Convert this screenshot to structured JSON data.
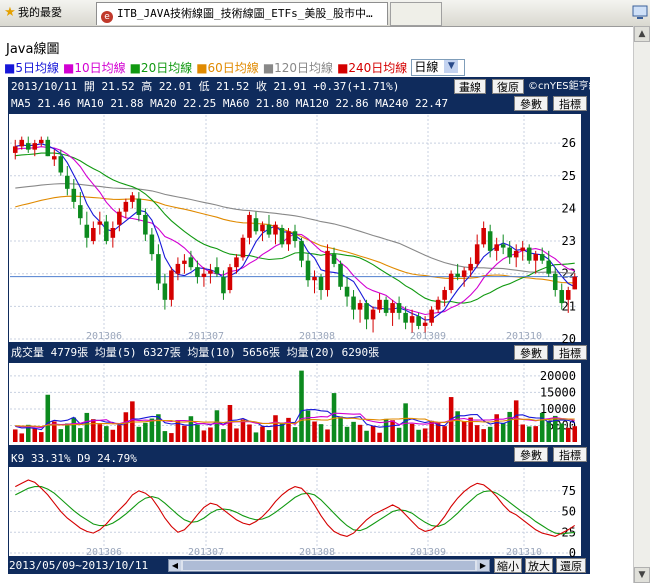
{
  "tabs": {
    "favorites": "我的最愛",
    "active": "ITB_JAVA技術線圖_技術線圖_ETFs_美股_股市中…",
    "active_icon": "cnyes-favicon"
  },
  "page": {
    "title": "Java線圖",
    "ma_legend": [
      {
        "label": "■5日均線",
        "color": "#1818d8"
      },
      {
        "label": "■10日均線",
        "color": "#d200d2"
      },
      {
        "label": "■20日均線",
        "color": "#119911"
      },
      {
        "label": "■60日均線",
        "color": "#e08a00"
      },
      {
        "label": "■120日均線",
        "color": "#888888"
      },
      {
        "label": "■240日均線",
        "color": "#d40000"
      }
    ],
    "period_select": "日線"
  },
  "header": {
    "quote_line": "2013/10/11 開 21.52 高 22.01 低 21.52 收 21.91 +0.37(+1.71%)",
    "ma_line": "MA5 21.46  MA10 21.88  MA20 22.25  MA60 21.80  MA120 22.86  MA240 22.47",
    "draw_button": "畫線",
    "restore_button": "復原",
    "copyright": "©cnYES鉅亨網",
    "params_button": "參數",
    "indicator_button": "指標"
  },
  "volume_header": {
    "text": "成交量 4779張  均量(5) 6327張  均量(10) 5656張  均量(20) 6290張",
    "params_button": "參數",
    "indicator_button": "指標"
  },
  "kd_header": {
    "text": "K9 33.31%  D9 24.79%",
    "params_button": "參數",
    "indicator_button": "指標"
  },
  "footer": {
    "range": "2013/05/09~2013/10/11",
    "zoom_out_button": "縮小",
    "zoom_in_button": "放大",
    "reset_button": "還原"
  },
  "colors": {
    "panel_bg": "#ffffff",
    "frame": "#0f2b5c",
    "up": "#d40000",
    "down": "#0c8a1e",
    "grid": "#c8d0e0"
  },
  "chart_data": [
    {
      "type": "candlestick",
      "title": "",
      "x_tick_labels": [
        "201306",
        "201307",
        "201308",
        "201309",
        "201310"
      ],
      "yticks": [
        20,
        21,
        22,
        23,
        24,
        25,
        26
      ],
      "ylim": [
        20,
        26.8
      ],
      "ohlc": [
        [
          25.7,
          26.1,
          25.5,
          25.9
        ],
        [
          25.9,
          26.2,
          25.8,
          26.1
        ],
        [
          26.0,
          26.2,
          25.7,
          25.8
        ],
        [
          25.8,
          26.1,
          25.6,
          26.0
        ],
        [
          26.0,
          26.2,
          25.9,
          26.1
        ],
        [
          26.1,
          26.2,
          25.6,
          25.6
        ],
        [
          25.5,
          25.8,
          25.3,
          25.6
        ],
        [
          25.6,
          25.8,
          25.0,
          25.1
        ],
        [
          25.0,
          25.3,
          24.4,
          24.6
        ],
        [
          24.6,
          24.9,
          24.0,
          24.2
        ],
        [
          24.1,
          24.5,
          23.5,
          23.7
        ],
        [
          23.5,
          23.9,
          22.8,
          23.1
        ],
        [
          23.0,
          23.6,
          22.9,
          23.4
        ],
        [
          23.5,
          23.9,
          23.2,
          23.6
        ],
        [
          23.6,
          23.8,
          22.9,
          23.0
        ],
        [
          23.1,
          23.6,
          22.8,
          23.4
        ],
        [
          23.5,
          24.0,
          23.3,
          23.9
        ],
        [
          23.9,
          24.3,
          23.7,
          24.2
        ],
        [
          24.2,
          24.5,
          24.0,
          24.4
        ],
        [
          24.3,
          24.5,
          23.6,
          23.8
        ],
        [
          23.8,
          24.0,
          23.0,
          23.2
        ],
        [
          23.2,
          23.4,
          22.4,
          22.6
        ],
        [
          22.6,
          22.9,
          21.5,
          21.7
        ],
        [
          21.7,
          22.0,
          20.9,
          21.2
        ],
        [
          21.2,
          22.2,
          21.0,
          22.1
        ],
        [
          22.0,
          22.5,
          21.8,
          22.3
        ],
        [
          22.3,
          22.6,
          22.0,
          22.4
        ],
        [
          22.5,
          22.7,
          22.1,
          22.2
        ],
        [
          22.2,
          22.4,
          21.7,
          21.9
        ],
        [
          21.9,
          22.2,
          21.6,
          22.0
        ],
        [
          22.0,
          22.3,
          21.7,
          22.1
        ],
        [
          22.2,
          22.5,
          21.9,
          22.0
        ],
        [
          21.9,
          22.1,
          21.2,
          21.4
        ],
        [
          21.5,
          22.3,
          21.4,
          22.2
        ],
        [
          22.2,
          22.6,
          22.0,
          22.5
        ],
        [
          22.5,
          23.2,
          22.4,
          23.1
        ],
        [
          23.1,
          23.9,
          22.9,
          23.8
        ],
        [
          23.7,
          23.9,
          23.2,
          23.3
        ],
        [
          23.3,
          23.6,
          23.0,
          23.5
        ],
        [
          23.5,
          23.8,
          23.1,
          23.2
        ],
        [
          23.2,
          23.6,
          22.9,
          23.5
        ],
        [
          23.4,
          23.5,
          22.8,
          22.9
        ],
        [
          22.9,
          23.4,
          22.7,
          23.3
        ],
        [
          23.3,
          23.5,
          22.8,
          23.0
        ],
        [
          23.0,
          23.1,
          22.2,
          22.4
        ],
        [
          22.4,
          22.6,
          21.6,
          21.8
        ],
        [
          21.8,
          22.1,
          21.4,
          21.9
        ],
        [
          21.9,
          22.0,
          21.2,
          21.5
        ],
        [
          21.5,
          22.9,
          21.3,
          22.7
        ],
        [
          22.6,
          22.8,
          22.2,
          22.3
        ],
        [
          22.3,
          22.4,
          21.5,
          21.6
        ],
        [
          21.6,
          21.9,
          21.0,
          21.3
        ],
        [
          21.3,
          21.5,
          20.6,
          20.9
        ],
        [
          20.9,
          21.2,
          20.5,
          21.1
        ],
        [
          21.1,
          21.2,
          20.3,
          20.6
        ],
        [
          20.6,
          21.0,
          20.2,
          20.9
        ],
        [
          20.9,
          21.4,
          20.8,
          21.2
        ],
        [
          21.2,
          21.3,
          20.7,
          20.8
        ],
        [
          20.8,
          21.2,
          20.4,
          21.1
        ],
        [
          21.1,
          21.3,
          20.6,
          20.8
        ],
        [
          20.8,
          21.0,
          20.3,
          20.5
        ],
        [
          20.5,
          20.9,
          20.2,
          20.7
        ],
        [
          20.7,
          20.8,
          20.3,
          20.4
        ],
        [
          20.4,
          20.7,
          20.2,
          20.5
        ],
        [
          20.5,
          21.0,
          20.4,
          20.9
        ],
        [
          20.9,
          21.3,
          20.8,
          21.2
        ],
        [
          21.2,
          21.6,
          21.0,
          21.5
        ],
        [
          21.5,
          22.1,
          21.4,
          22.0
        ],
        [
          22.0,
          22.3,
          21.8,
          21.9
        ],
        [
          21.9,
          22.2,
          21.6,
          22.1
        ],
        [
          22.1,
          22.5,
          21.9,
          22.3
        ],
        [
          22.3,
          23.2,
          22.2,
          22.9
        ],
        [
          22.9,
          23.6,
          22.8,
          23.4
        ],
        [
          23.3,
          23.5,
          22.5,
          22.7
        ],
        [
          22.7,
          23.1,
          22.4,
          22.9
        ],
        [
          22.9,
          23.2,
          22.6,
          22.8
        ],
        [
          22.8,
          23.0,
          22.3,
          22.5
        ],
        [
          22.5,
          22.9,
          22.2,
          22.7
        ],
        [
          22.7,
          23.0,
          22.4,
          22.8
        ],
        [
          22.8,
          22.9,
          22.3,
          22.4
        ],
        [
          22.4,
          22.7,
          22.0,
          22.6
        ],
        [
          22.6,
          22.8,
          22.3,
          22.4
        ],
        [
          22.4,
          22.7,
          21.9,
          22.0
        ],
        [
          22.0,
          22.2,
          21.3,
          21.5
        ],
        [
          21.5,
          21.7,
          20.9,
          21.1
        ],
        [
          21.2,
          21.6,
          20.8,
          21.5
        ],
        [
          21.52,
          22.01,
          21.52,
          21.91
        ]
      ],
      "moving_averages": {
        "MA5": {
          "color": "#1818d8",
          "last": 21.46
        },
        "MA10": {
          "color": "#d200d2",
          "last": 21.88
        },
        "MA20": {
          "color": "#119911",
          "last": 22.25
        },
        "MA60": {
          "color": "#e08a00",
          "last": 21.8
        },
        "MA120": {
          "color": "#888888",
          "last": 22.86
        },
        "MA240": {
          "color": "#d40000",
          "last": 22.47
        }
      }
    },
    {
      "type": "bar",
      "title": "成交量",
      "unit": "張",
      "yticks": [
        5000,
        10000,
        15000,
        20000
      ],
      "ylim": [
        0,
        23000
      ],
      "values": [
        3800,
        2600,
        5200,
        4100,
        3000,
        14300,
        6200,
        3900,
        5600,
        7400,
        4200,
        8800,
        6900,
        5400,
        4800,
        3700,
        5100,
        9000,
        12300,
        4600,
        5800,
        7100,
        8400,
        3300,
        2700,
        6600,
        4900,
        7800,
        5200,
        3500,
        4400,
        9600,
        3900,
        11200,
        4100,
        6800,
        5300,
        2900,
        4700,
        3600,
        8100,
        5900,
        7300,
        4500,
        21600,
        9500,
        6200,
        5400,
        3800,
        14800,
        7700,
        4600,
        6100,
        5200,
        3400,
        4900,
        2800,
        7000,
        6600,
        4300,
        11700,
        5500,
        3700,
        4100,
        6400,
        5700,
        4800,
        13600,
        9300,
        6200,
        7400,
        5100,
        3900,
        4600,
        8400,
        5800,
        9100,
        12600,
        5300,
        4700,
        4800,
        8800,
        6300,
        7900,
        5600,
        4300,
        4779
      ]
    },
    {
      "type": "line",
      "title": "KD",
      "yticks": [
        0,
        25,
        50,
        75
      ],
      "ylim": [
        0,
        100
      ],
      "series": [
        {
          "name": "K9",
          "last": 33.31
        },
        {
          "name": "D9",
          "last": 24.79
        }
      ],
      "K": [
        80,
        84,
        88,
        85,
        78,
        70,
        60,
        50,
        42,
        36,
        30,
        26,
        24,
        28,
        35,
        44,
        52,
        60,
        70,
        75,
        72,
        66,
        55,
        42,
        32,
        25,
        28,
        36,
        46,
        55,
        60,
        58,
        52,
        46,
        40,
        36,
        34,
        38,
        44,
        52,
        62,
        70,
        76,
        80,
        78,
        70,
        58,
        45,
        34,
        26,
        22,
        20,
        24,
        32,
        40,
        46,
        50,
        54,
        58,
        54,
        46,
        38,
        30,
        26,
        28,
        34,
        44,
        56,
        66,
        74,
        80,
        84,
        82,
        76,
        68,
        58,
        50,
        46,
        40,
        34,
        28,
        24,
        22,
        20,
        24,
        28,
        33.31
      ],
      "D": [
        70,
        74,
        78,
        80,
        80,
        77,
        72,
        65,
        58,
        51,
        45,
        40,
        35,
        33,
        33,
        36,
        41,
        47,
        54,
        61,
        66,
        68,
        66,
        60,
        53,
        46,
        40,
        37,
        38,
        42,
        48,
        52,
        53,
        52,
        49,
        45,
        42,
        40,
        41,
        44,
        49,
        55,
        61,
        67,
        71,
        72,
        70,
        64,
        56,
        48,
        40,
        33,
        28,
        27,
        30,
        35,
        40,
        45,
        50,
        52,
        51,
        48,
        42,
        37,
        33,
        32,
        35,
        41,
        48,
        56,
        63,
        70,
        74,
        75,
        72,
        67,
        61,
        55,
        49,
        44,
        38,
        33,
        28,
        24,
        23,
        24,
        24.79
      ]
    }
  ]
}
